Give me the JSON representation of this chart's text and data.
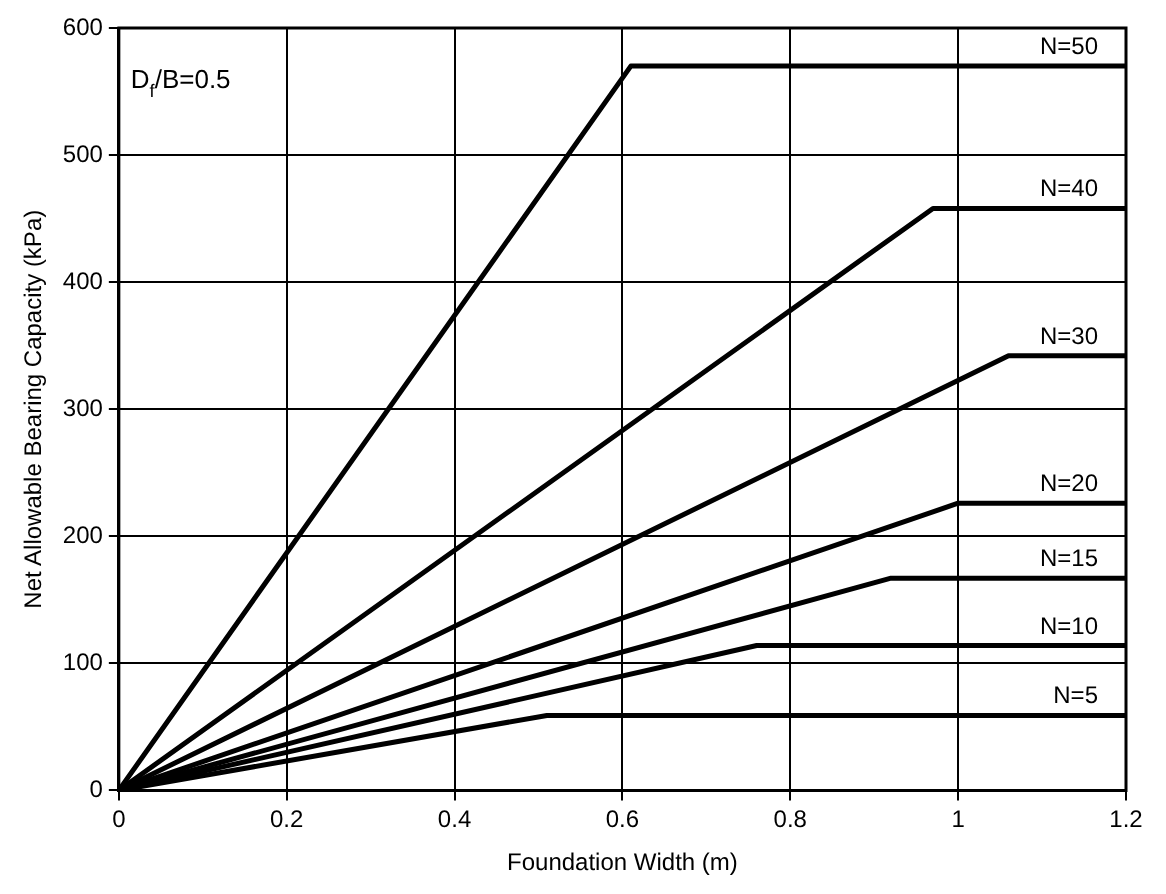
{
  "chart_data": {
    "type": "line",
    "xlabel": "Foundation Width (m)",
    "ylabel": "Net Allowable Bearing Capacity (kPa)",
    "annotations": [
      "D$_{f}$/B=0.5"
    ],
    "xlim": [
      0,
      1.2
    ],
    "xticks": [
      0,
      0.2,
      0.4,
      0.6,
      0.8,
      1,
      1.2
    ],
    "ylim": [
      0,
      600
    ],
    "yticks": [
      0,
      100,
      200,
      300,
      400,
      500,
      600
    ],
    "grid": true,
    "legend": false,
    "marker": "none",
    "line_style": "solid",
    "series": [
      {
        "name": "N=50",
        "color": "#000000",
        "x": [
          0,
          0.61,
          1.2
        ],
        "values": [
          0,
          570,
          570
        ]
      },
      {
        "name": "N=40",
        "color": "#000000",
        "x": [
          0,
          0.97,
          1.2
        ],
        "values": [
          0,
          458,
          458
        ]
      },
      {
        "name": "N=30",
        "color": "#000000",
        "x": [
          0,
          1.06,
          1.2
        ],
        "values": [
          0,
          342,
          342
        ]
      },
      {
        "name": "N=20",
        "color": "#000000",
        "x": [
          0,
          1.0,
          1.2
        ],
        "values": [
          0,
          226,
          226
        ]
      },
      {
        "name": "N=15",
        "color": "#000000",
        "x": [
          0,
          0.92,
          1.2
        ],
        "values": [
          0,
          167,
          167
        ]
      },
      {
        "name": "N=10",
        "color": "#000000",
        "x": [
          0,
          0.76,
          1.2
        ],
        "values": [
          0,
          114,
          114
        ]
      },
      {
        "name": "N=5",
        "color": "#000000",
        "x": [
          0,
          0.51,
          1.2
        ],
        "values": [
          0,
          59,
          59
        ]
      }
    ]
  }
}
